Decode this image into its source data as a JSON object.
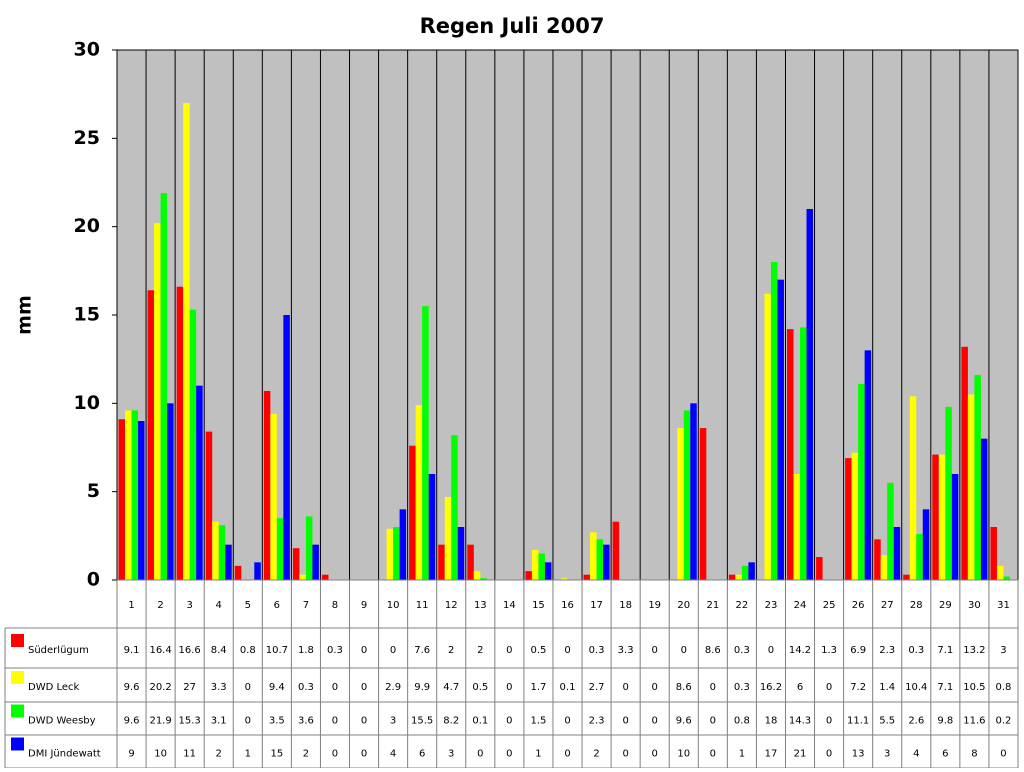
{
  "chart_data": {
    "type": "bar",
    "title": "Regen Juli 2007",
    "y_label": "mm",
    "categories": [
      "1",
      "2",
      "3",
      "4",
      "5",
      "6",
      "7",
      "8",
      "9",
      "10",
      "11",
      "12",
      "13",
      "14",
      "15",
      "16",
      "17",
      "18",
      "19",
      "20",
      "21",
      "22",
      "23",
      "24",
      "25",
      "26",
      "27",
      "28",
      "29",
      "30",
      "31"
    ],
    "series": [
      {
        "name": "Süderlügum",
        "color": "#ff0000",
        "values": [
          9.1,
          16.4,
          16.6,
          8.4,
          0.8,
          10.7,
          1.8,
          0.3,
          0,
          0,
          7.6,
          2,
          2,
          0,
          0.5,
          0,
          0.3,
          3.3,
          0,
          0,
          8.6,
          0.3,
          0,
          14.2,
          1.3,
          6.9,
          2.3,
          0.3,
          7.1,
          13.2,
          3
        ]
      },
      {
        "name": "DWD Leck",
        "color": "#ffff00",
        "values": [
          9.6,
          20.2,
          27,
          3.3,
          0,
          9.4,
          0.3,
          0,
          0,
          2.9,
          9.9,
          4.7,
          0.5,
          0,
          1.7,
          0.1,
          2.7,
          0,
          0,
          8.6,
          0,
          0.3,
          16.2,
          6,
          0,
          7.2,
          1.4,
          10.4,
          7.1,
          10.5,
          0.8
        ]
      },
      {
        "name": "DWD Weesby",
        "color": "#00ff00",
        "values": [
          9.6,
          21.9,
          15.3,
          3.1,
          0,
          3.5,
          3.6,
          0,
          0,
          3,
          15.5,
          8.2,
          0.1,
          0,
          1.5,
          0,
          2.3,
          0,
          0,
          9.6,
          0,
          0.8,
          18,
          14.3,
          0,
          11.1,
          5.5,
          2.6,
          9.8,
          11.6,
          0.2
        ]
      },
      {
        "name": "DMI Jündewatt",
        "color": "#0000ff",
        "values": [
          9,
          10,
          11,
          2,
          1,
          15,
          2,
          0,
          0,
          4,
          6,
          3,
          0,
          0,
          1,
          0,
          2,
          0,
          0,
          10,
          0,
          1,
          17,
          21,
          0,
          13,
          3,
          4,
          6,
          8,
          0
        ]
      }
    ],
    "ylim": [
      0,
      30
    ],
    "yticks": [
      0,
      5,
      10,
      15,
      20,
      25,
      30
    ],
    "grid": true,
    "plot_background": "#c0c0c0",
    "data_table": true
  }
}
